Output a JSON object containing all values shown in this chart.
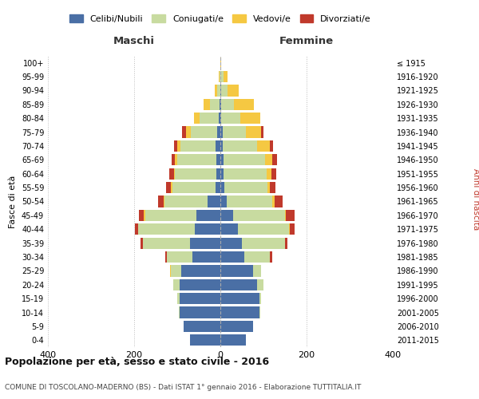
{
  "age_groups": [
    "0-4",
    "5-9",
    "10-14",
    "15-19",
    "20-24",
    "25-29",
    "30-34",
    "35-39",
    "40-44",
    "45-49",
    "50-54",
    "55-59",
    "60-64",
    "65-69",
    "70-74",
    "75-79",
    "80-84",
    "85-89",
    "90-94",
    "95-99",
    "100+"
  ],
  "birth_years": [
    "2011-2015",
    "2006-2010",
    "2001-2005",
    "1996-2000",
    "1991-1995",
    "1986-1990",
    "1981-1985",
    "1976-1980",
    "1971-1975",
    "1966-1970",
    "1961-1965",
    "1956-1960",
    "1951-1955",
    "1946-1950",
    "1941-1945",
    "1936-1940",
    "1931-1935",
    "1926-1930",
    "1921-1925",
    "1916-1920",
    "≤ 1915"
  ],
  "males": {
    "celibi": [
      70,
      85,
      95,
      95,
      95,
      90,
      65,
      70,
      60,
      55,
      30,
      12,
      10,
      10,
      12,
      8,
      4,
      2,
      0,
      0,
      0
    ],
    "coniugati": [
      0,
      0,
      2,
      5,
      15,
      25,
      60,
      110,
      130,
      120,
      100,
      100,
      95,
      90,
      80,
      60,
      45,
      22,
      8,
      2,
      0
    ],
    "vedovi": [
      0,
      0,
      0,
      0,
      0,
      2,
      0,
      0,
      0,
      2,
      2,
      2,
      2,
      5,
      8,
      12,
      12,
      15,
      5,
      2,
      0
    ],
    "divorziati": [
      0,
      0,
      0,
      0,
      0,
      0,
      2,
      5,
      8,
      12,
      12,
      12,
      12,
      8,
      8,
      8,
      0,
      0,
      0,
      0,
      0
    ]
  },
  "females": {
    "nubili": [
      60,
      75,
      90,
      90,
      85,
      75,
      55,
      50,
      40,
      30,
      15,
      10,
      8,
      8,
      5,
      5,
      2,
      2,
      2,
      0,
      0
    ],
    "coniugate": [
      0,
      0,
      2,
      5,
      15,
      20,
      60,
      100,
      120,
      120,
      105,
      100,
      100,
      95,
      80,
      55,
      45,
      30,
      15,
      8,
      0
    ],
    "vedove": [
      0,
      0,
      0,
      0,
      0,
      0,
      0,
      0,
      2,
      2,
      5,
      5,
      10,
      18,
      30,
      35,
      45,
      45,
      25,
      8,
      2
    ],
    "divorziate": [
      0,
      0,
      0,
      0,
      0,
      0,
      5,
      5,
      10,
      20,
      20,
      12,
      12,
      10,
      8,
      5,
      0,
      0,
      0,
      0,
      0
    ]
  },
  "colors": {
    "celibi": "#4a6fa5",
    "coniugati": "#c8dba0",
    "vedovi": "#f5c842",
    "divorziati": "#c0392b"
  },
  "title": "Popolazione per età, sesso e stato civile - 2016",
  "subtitle": "COMUNE DI TOSCOLANO-MADERNO (BS) - Dati ISTAT 1° gennaio 2016 - Elaborazione TUTTITALIA.IT",
  "xlabel_left": "Maschi",
  "xlabel_right": "Femmine",
  "ylabel": "Fasce di età",
  "ylabel_right": "Anni di nascita",
  "xlim": 400,
  "background_color": "#ffffff",
  "grid_color": "#cccccc"
}
